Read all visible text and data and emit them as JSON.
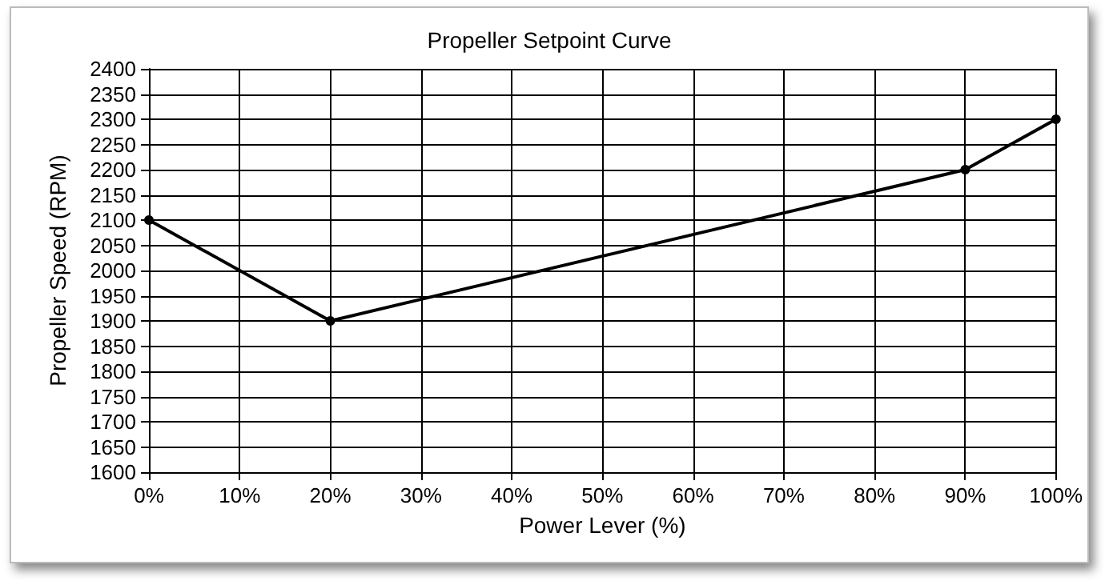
{
  "chart_data": {
    "type": "line",
    "title": "Propeller Setpoint Curve",
    "xlabel": "Power Lever (%)",
    "ylabel": "Propeller Speed (RPM)",
    "x": [
      0,
      20,
      90,
      100
    ],
    "series": [
      {
        "color": "#000000",
        "values": [
          2100,
          1900,
          2200,
          2300
        ]
      }
    ],
    "xlim": [
      0,
      100
    ],
    "xticks": [
      {
        "value": 0,
        "label": "0%"
      },
      {
        "value": 10,
        "label": "10%"
      },
      {
        "value": 20,
        "label": "20%"
      },
      {
        "value": 30,
        "label": "30%"
      },
      {
        "value": 40,
        "label": "40%"
      },
      {
        "value": 50,
        "label": "50%"
      },
      {
        "value": 60,
        "label": "60%"
      },
      {
        "value": 70,
        "label": "70%"
      },
      {
        "value": 80,
        "label": "80%"
      },
      {
        "value": 90,
        "label": "90%"
      },
      {
        "value": 100,
        "label": "100%"
      }
    ],
    "ylim": [
      1600,
      2400
    ],
    "yticks": [
      1600,
      1650,
      1700,
      1750,
      1800,
      1850,
      1900,
      1950,
      2000,
      2050,
      2100,
      2150,
      2200,
      2250,
      2300,
      2350,
      2400
    ],
    "grid": true,
    "marker": "circle",
    "line_style": "solid"
  }
}
